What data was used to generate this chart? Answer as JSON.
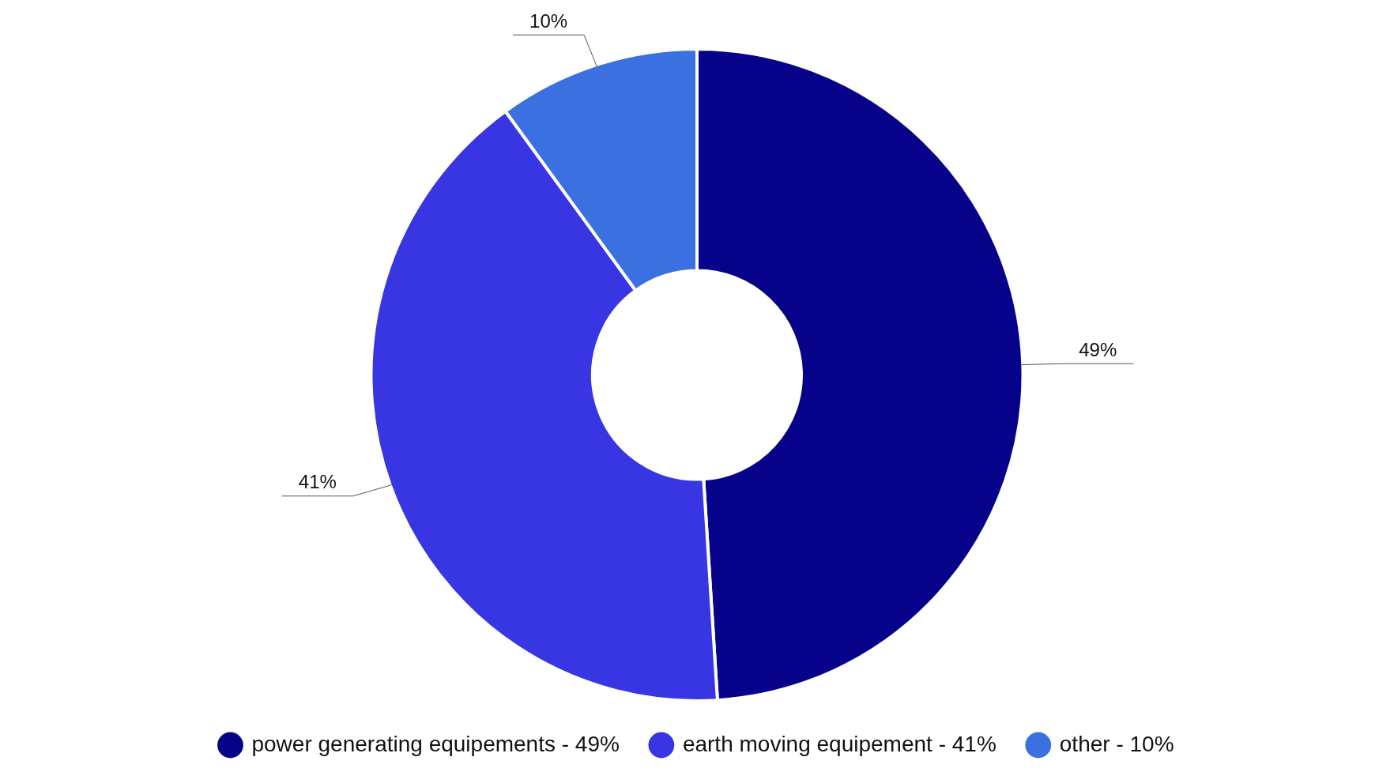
{
  "chart_data": {
    "type": "donut",
    "categories": [
      "power generating equipements - 49%",
      "earth moving equipement - 41%",
      "other - 10%"
    ],
    "values": [
      49,
      41,
      10
    ],
    "colors": [
      "#06038a",
      "#3835e2",
      "#3a70e0"
    ],
    "value_labels": [
      "49%",
      "41%",
      "10%"
    ],
    "legend": "bottom"
  }
}
